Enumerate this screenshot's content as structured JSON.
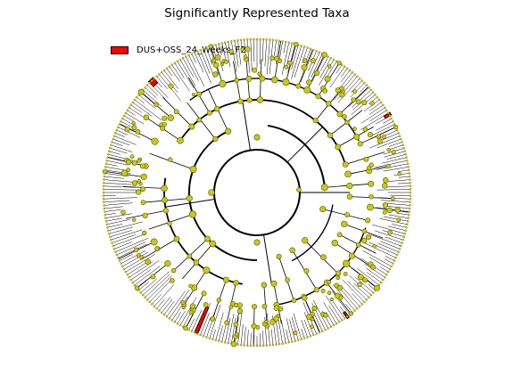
{
  "title": "Significantly Represented Taxa",
  "legend": {
    "label": "DUS+OSS_24_Weeks_F2",
    "color": "#ff0000"
  },
  "colors": {
    "node_fill": "#c8c819",
    "node_stroke": "#5a5a00",
    "branch": "#000000",
    "highlight": "#ff0000"
  }
}
